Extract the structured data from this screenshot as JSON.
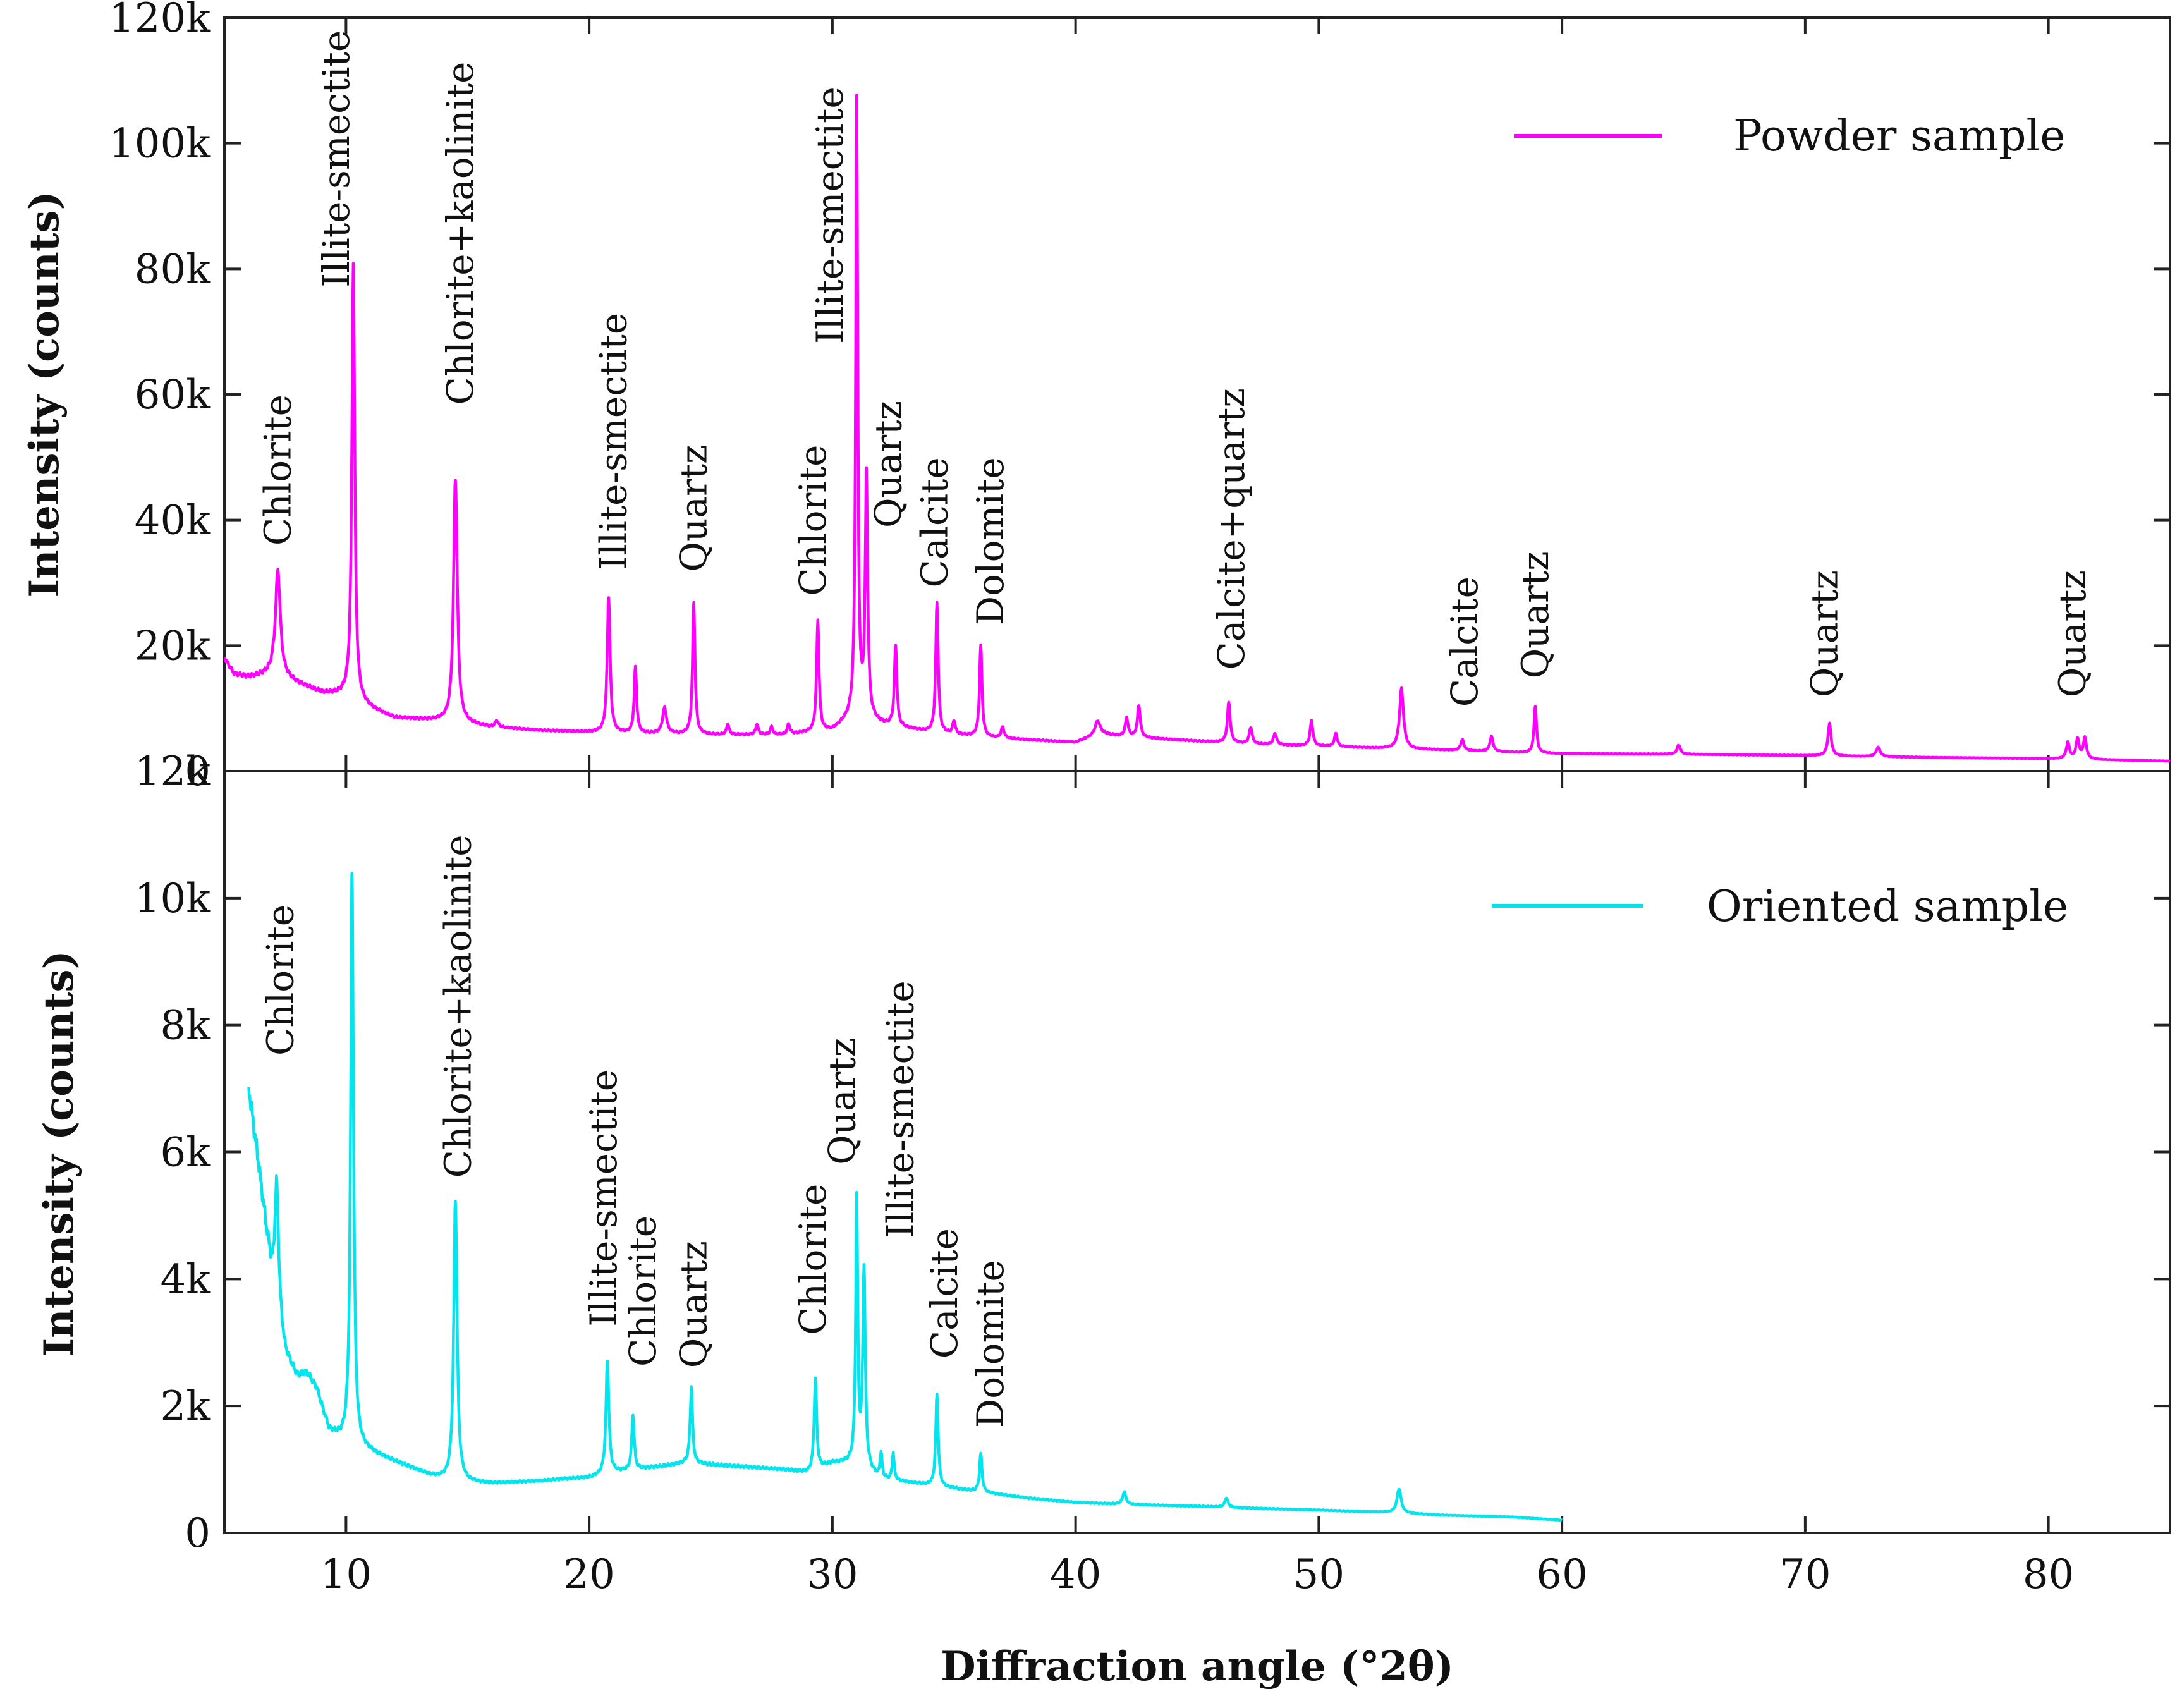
{
  "figure": {
    "xlabel": "Diffraction angle (°2θ)",
    "x_ticks": [
      10,
      20,
      30,
      40,
      50,
      60,
      70,
      80
    ]
  },
  "chart_data": [
    {
      "type": "line",
      "id": "powder",
      "xlim": [
        5,
        85
      ],
      "ylim": [
        0,
        120000
      ],
      "ylabel": "Intensity (counts)",
      "y_ticks": [
        {
          "value": 0,
          "label": "0"
        },
        {
          "value": 20000,
          "label": "20k"
        },
        {
          "value": 40000,
          "label": "40k"
        },
        {
          "value": 60000,
          "label": "60k"
        },
        {
          "value": 80000,
          "label": "80k"
        },
        {
          "value": 100000,
          "label": "100k"
        },
        {
          "value": 120000,
          "label": "120k"
        }
      ],
      "series": [
        {
          "name": "Powder sample",
          "color": "#ff00ff"
        }
      ],
      "background": [
        [
          5,
          18000
        ],
        [
          5.4,
          15500
        ],
        [
          6,
          15000
        ],
        [
          7,
          15500
        ],
        [
          8,
          14000
        ],
        [
          9,
          12500
        ],
        [
          10,
          12000
        ],
        [
          11,
          10000
        ],
        [
          12,
          8500
        ],
        [
          14,
          8000
        ],
        [
          16,
          7000
        ],
        [
          18,
          6500
        ],
        [
          20,
          6200
        ],
        [
          22,
          6000
        ],
        [
          25,
          5800
        ],
        [
          28,
          5800
        ],
        [
          30,
          6500
        ],
        [
          31,
          9000
        ],
        [
          32,
          7500
        ],
        [
          34,
          6200
        ],
        [
          36,
          5500
        ],
        [
          38,
          5000
        ],
        [
          40,
          4600
        ],
        [
          41,
          6000
        ],
        [
          42,
          5500
        ],
        [
          45,
          4800
        ],
        [
          48,
          4200
        ],
        [
          50,
          4000
        ],
        [
          53,
          3600
        ],
        [
          55,
          3400
        ],
        [
          58,
          3000
        ],
        [
          60,
          2800
        ],
        [
          65,
          2700
        ],
        [
          70,
          2500
        ],
        [
          75,
          2200
        ],
        [
          80,
          2000
        ],
        [
          85,
          1600
        ]
      ],
      "peaks": [
        {
          "x": 7.2,
          "y": 32000,
          "w": 0.12
        },
        {
          "x": 10.3,
          "y": 81000,
          "w": 0.07
        },
        {
          "x": 14.5,
          "y": 47000,
          "w": 0.09
        },
        {
          "x": 16.2,
          "y": 8000,
          "w": 0.08
        },
        {
          "x": 20.8,
          "y": 28000,
          "w": 0.07
        },
        {
          "x": 21.9,
          "y": 16500,
          "w": 0.06
        },
        {
          "x": 23.1,
          "y": 10000,
          "w": 0.1
        },
        {
          "x": 24.3,
          "y": 27000,
          "w": 0.06
        },
        {
          "x": 25.7,
          "y": 7500,
          "w": 0.06
        },
        {
          "x": 26.9,
          "y": 7500,
          "w": 0.06
        },
        {
          "x": 27.5,
          "y": 7000,
          "w": 0.06
        },
        {
          "x": 28.2,
          "y": 7500,
          "w": 0.06
        },
        {
          "x": 29.4,
          "y": 24000,
          "w": 0.06
        },
        {
          "x": 31.0,
          "y": 106000,
          "w": 0.05
        },
        {
          "x": 31.4,
          "y": 46000,
          "w": 0.06
        },
        {
          "x": 32.6,
          "y": 20000,
          "w": 0.06
        },
        {
          "x": 34.3,
          "y": 27000,
          "w": 0.06
        },
        {
          "x": 35.0,
          "y": 8000,
          "w": 0.06
        },
        {
          "x": 36.1,
          "y": 20000,
          "w": 0.06
        },
        {
          "x": 37.0,
          "y": 7000,
          "w": 0.07
        },
        {
          "x": 40.9,
          "y": 8000,
          "w": 0.12
        },
        {
          "x": 42.1,
          "y": 8500,
          "w": 0.07
        },
        {
          "x": 42.6,
          "y": 10500,
          "w": 0.07
        },
        {
          "x": 46.3,
          "y": 11000,
          "w": 0.07
        },
        {
          "x": 47.2,
          "y": 7000,
          "w": 0.07
        },
        {
          "x": 48.2,
          "y": 6000,
          "w": 0.08
        },
        {
          "x": 49.7,
          "y": 8000,
          "w": 0.07
        },
        {
          "x": 50.7,
          "y": 6000,
          "w": 0.07
        },
        {
          "x": 53.4,
          "y": 13000,
          "w": 0.1
        },
        {
          "x": 55.9,
          "y": 5000,
          "w": 0.08
        },
        {
          "x": 57.1,
          "y": 5500,
          "w": 0.08
        },
        {
          "x": 58.9,
          "y": 10500,
          "w": 0.06
        },
        {
          "x": 64.8,
          "y": 4200,
          "w": 0.08
        },
        {
          "x": 71.0,
          "y": 7500,
          "w": 0.08
        },
        {
          "x": 73.0,
          "y": 3800,
          "w": 0.1
        },
        {
          "x": 80.8,
          "y": 4500,
          "w": 0.08
        },
        {
          "x": 81.2,
          "y": 5000,
          "w": 0.08
        },
        {
          "x": 81.5,
          "y": 5200,
          "w": 0.08
        }
      ],
      "annotations": [
        {
          "text": "Chlorite",
          "x": 7.2,
          "y_top": 60000
        },
        {
          "text": "Illite-smectite",
          "x": 9.6,
          "y_top": 118000
        },
        {
          "text": "Chlorite+kaolinite",
          "x": 14.7,
          "y_top": 113000
        },
        {
          "text": "Illite-smectite",
          "x": 21.0,
          "y_top": 73000
        },
        {
          "text": "Quartz",
          "x": 24.3,
          "y_top": 52000
        },
        {
          "text": "Chlorite",
          "x": 29.2,
          "y_top": 52000
        },
        {
          "text": "Illite-smectite",
          "x": 29.9,
          "y_top": 109000
        },
        {
          "text": "Quartz",
          "x": 32.3,
          "y_top": 59000
        },
        {
          "text": "Calcite",
          "x": 34.2,
          "y_top": 50000
        },
        {
          "text": "Dolomite",
          "x": 36.5,
          "y_top": 50000
        },
        {
          "text": "Calcite+quartz",
          "x": 46.4,
          "y_top": 61000
        },
        {
          "text": "Calcite",
          "x": 56.0,
          "y_top": 31000
        },
        {
          "text": "Quartz",
          "x": 58.9,
          "y_top": 35000
        },
        {
          "text": "Quartz",
          "x": 70.8,
          "y_top": 32000
        },
        {
          "text": "Quartz",
          "x": 81.0,
          "y_top": 32000
        }
      ],
      "legend": {
        "label": "Powder sample",
        "position": "top-right"
      }
    },
    {
      "type": "line",
      "id": "oriented",
      "xlim": [
        5,
        85
      ],
      "ylim": [
        0,
        12000
      ],
      "ylabel": "Intensity (counts)",
      "y_ticks": [
        {
          "value": 0,
          "label": "0"
        },
        {
          "value": 2000,
          "label": "2k"
        },
        {
          "value": 4000,
          "label": "4k"
        },
        {
          "value": 6000,
          "label": "6k"
        },
        {
          "value": 8000,
          "label": "8k"
        },
        {
          "value": 10000,
          "label": "10k"
        },
        {
          "value": 12000,
          "label": "12k"
        }
      ],
      "series": [
        {
          "name": "Oriented sample",
          "color": "#00e5ee"
        }
      ],
      "background": [
        [
          6,
          7000
        ],
        [
          6.4,
          5800
        ],
        [
          6.8,
          4500
        ],
        [
          7.0,
          3800
        ],
        [
          7.5,
          2800
        ],
        [
          8,
          2400
        ],
        [
          8.8,
          2200
        ],
        [
          9.3,
          1600
        ],
        [
          9.8,
          1450
        ],
        [
          10.8,
          1300
        ],
        [
          11.5,
          1200
        ],
        [
          12.5,
          1050
        ],
        [
          13.5,
          900
        ],
        [
          14,
          850
        ],
        [
          15,
          800
        ],
        [
          16,
          780
        ],
        [
          17,
          800
        ],
        [
          18,
          820
        ],
        [
          19,
          850
        ],
        [
          20,
          870
        ],
        [
          21,
          950
        ],
        [
          22,
          1000
        ],
        [
          23,
          1050
        ],
        [
          24,
          1100
        ],
        [
          26,
          1050
        ],
        [
          28,
          1000
        ],
        [
          29,
          950
        ],
        [
          30,
          1100
        ],
        [
          31,
          1100
        ],
        [
          32,
          850
        ],
        [
          33,
          800
        ],
        [
          34,
          750
        ],
        [
          35,
          700
        ],
        [
          36,
          650
        ],
        [
          37,
          600
        ],
        [
          38,
          550
        ],
        [
          40,
          480
        ],
        [
          42,
          450
        ],
        [
          45,
          420
        ],
        [
          48,
          380
        ],
        [
          50,
          360
        ],
        [
          53,
          320
        ],
        [
          55,
          280
        ],
        [
          58,
          250
        ],
        [
          60,
          200
        ]
      ],
      "peaks": [
        {
          "x": 7.15,
          "y": 5500,
          "w": 0.1
        },
        {
          "x": 8.4,
          "y": 2500,
          "w": 0.3
        },
        {
          "x": 10.25,
          "y": 10500,
          "w": 0.07
        },
        {
          "x": 14.5,
          "y": 5300,
          "w": 0.08
        },
        {
          "x": 20.75,
          "y": 2750,
          "w": 0.07
        },
        {
          "x": 21.8,
          "y": 1850,
          "w": 0.06
        },
        {
          "x": 24.2,
          "y": 2300,
          "w": 0.06
        },
        {
          "x": 29.3,
          "y": 2450,
          "w": 0.06
        },
        {
          "x": 31.0,
          "y": 5200,
          "w": 0.05
        },
        {
          "x": 31.3,
          "y": 4200,
          "w": 0.06
        },
        {
          "x": 32.0,
          "y": 1250,
          "w": 0.05
        },
        {
          "x": 32.5,
          "y": 1250,
          "w": 0.05
        },
        {
          "x": 34.3,
          "y": 2200,
          "w": 0.06
        },
        {
          "x": 36.1,
          "y": 1250,
          "w": 0.06
        },
        {
          "x": 42.0,
          "y": 650,
          "w": 0.08
        },
        {
          "x": 46.2,
          "y": 550,
          "w": 0.08
        },
        {
          "x": 53.3,
          "y": 700,
          "w": 0.1
        }
      ],
      "annotations": [
        {
          "text": "Chlorite",
          "x": 7.3,
          "y_top": 9900
        },
        {
          "text": "Chlorite+kaolinite",
          "x": 14.6,
          "y_top": 11000
        },
        {
          "text": "Illite-smectite",
          "x": 20.6,
          "y_top": 7300
        },
        {
          "text": "Chlorite",
          "x": 22.2,
          "y_top": 5000
        },
        {
          "text": "Quartz",
          "x": 24.3,
          "y_top": 4600
        },
        {
          "text": "Chlorite",
          "x": 29.2,
          "y_top": 5500
        },
        {
          "text": "Quartz",
          "x": 30.4,
          "y_top": 7800
        },
        {
          "text": "Illite-smectite",
          "x": 32.8,
          "y_top": 8700
        },
        {
          "text": "Calcite",
          "x": 34.6,
          "y_top": 4800
        },
        {
          "text": "Dolomite",
          "x": 36.5,
          "y_top": 4300
        }
      ],
      "legend": {
        "label": "Oriented sample",
        "position": "top-right"
      }
    }
  ]
}
